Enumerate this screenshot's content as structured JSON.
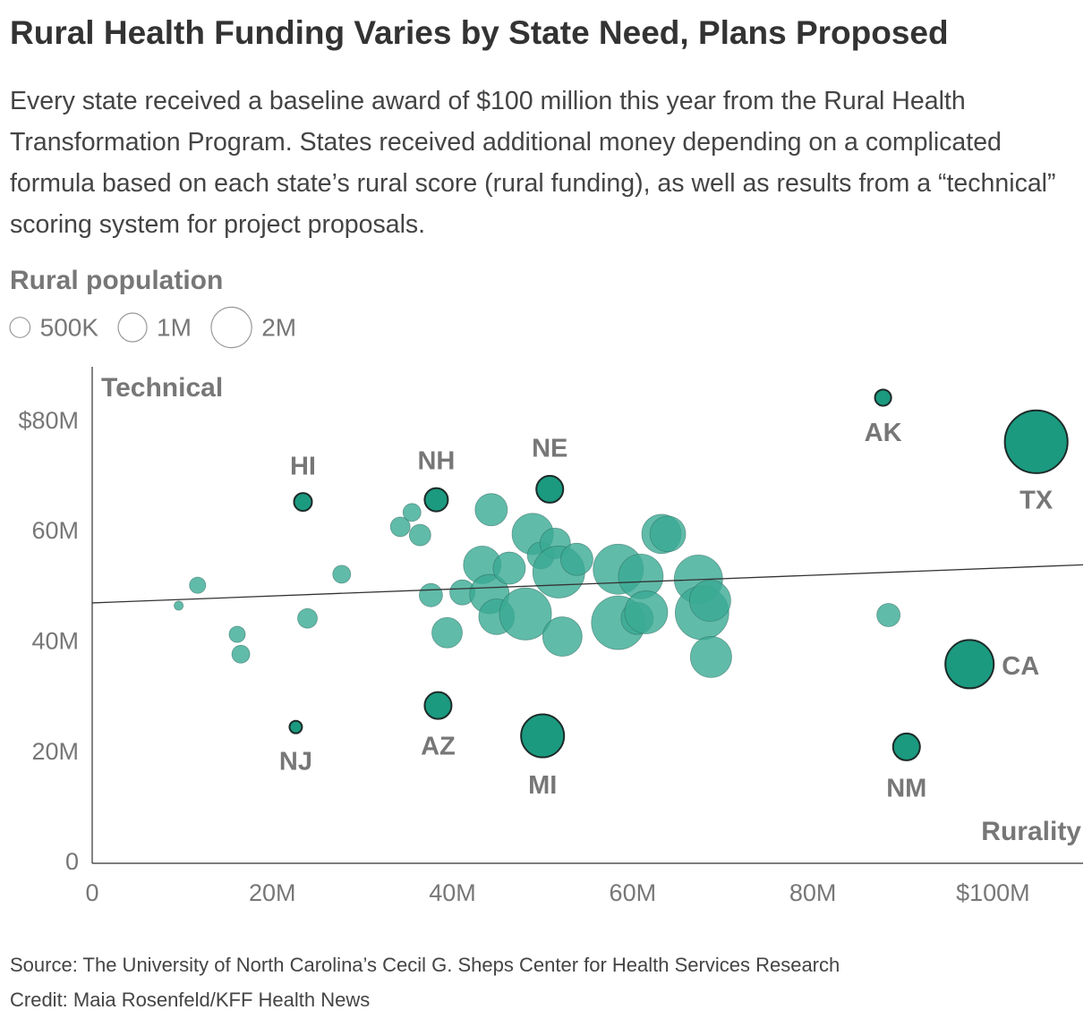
{
  "chart_data": {
    "type": "bubble",
    "title": "Rural Health Funding Varies by State Need, Plans Proposed",
    "subtitle": "Every state received a baseline award of $100 million this year from the Rural Health Transformation Program. States received additional money depending on a complicated formula based on each state’s rural score (rural funding), as well as results from a “technical” scoring system for project proposals.",
    "size_legend": {
      "title": "Rural population",
      "sizes": [
        {
          "value": 0.5,
          "label": "500K"
        },
        {
          "value": 1,
          "label": "1M"
        },
        {
          "value": 2,
          "label": "2M"
        }
      ]
    },
    "x_label": "Rurality",
    "y_label": "Technical",
    "xlim": [
      0,
      110
    ],
    "ylim": [
      0,
      90
    ],
    "xticks": [
      0,
      {
        "value": 20,
        "label": "20M"
      },
      {
        "value": 40,
        "label": "40M"
      },
      {
        "value": 60,
        "label": "60M"
      },
      {
        "value": 80,
        "label": "80M"
      },
      {
        "value": 100,
        "label": "$100M"
      }
    ],
    "yticks": [
      0,
      {
        "value": 20,
        "label": "20M"
      },
      {
        "value": 40,
        "label": "40M"
      },
      {
        "value": 60,
        "label": "60M"
      },
      {
        "value": 80,
        "label": "$80M"
      }
    ],
    "color": "#3aaa94",
    "highlight_color": "#1b9a80",
    "points": {
      "labels": [
        "AK",
        "TX",
        "HI",
        "NH",
        "NE",
        "CA",
        "NM",
        "NJ",
        "AZ",
        "MI",
        null,
        null,
        null,
        null,
        null,
        null,
        null,
        null,
        null,
        null,
        null,
        null,
        null,
        null,
        null,
        null,
        null,
        null,
        null,
        null,
        null,
        null,
        null,
        null,
        null,
        null,
        null,
        null,
        null,
        null,
        null,
        null,
        null,
        null,
        null,
        null
      ],
      "x": [
        87.8,
        104.8,
        23.4,
        38.2,
        50.8,
        97.4,
        90.4,
        22.6,
        38.4,
        50.0,
        9.6,
        11.7,
        16.1,
        16.5,
        23.9,
        27.7,
        34.2,
        35.5,
        36.4,
        37.6,
        39.4,
        41.1,
        44.3,
        43.3,
        44.1,
        44.9,
        46.3,
        48.1,
        48.9,
        49.8,
        51.4,
        51.8,
        52.2,
        53.8,
        58.4,
        58.4,
        60.5,
        60.9,
        61.5,
        63.2,
        63.9,
        67.3,
        67.7,
        68.6,
        68.7,
        88.4
      ],
      "y": [
        84.4,
        76.4,
        65.5,
        65.9,
        67.8,
        36.1,
        21.1,
        24.7,
        28.6,
        23.1,
        46.7,
        50.4,
        41.5,
        37.9,
        44.4,
        52.4,
        61.0,
        63.6,
        59.5,
        48.6,
        41.8,
        49.1,
        64.1,
        54.1,
        48.8,
        44.7,
        53.5,
        45.2,
        59.7,
        55.8,
        58.0,
        52.8,
        41.1,
        55.1,
        53.3,
        43.6,
        44.4,
        52.0,
        45.5,
        59.7,
        59.7,
        51.5,
        45.4,
        47.6,
        37.4,
        45.0
      ],
      "sizes": [
        0.32,
        4.8,
        0.39,
        0.66,
        0.88,
        2.85,
        0.88,
        0.19,
        0.88,
        2.25,
        0.1,
        0.32,
        0.32,
        0.39,
        0.47,
        0.39,
        0.47,
        0.39,
        0.56,
        0.66,
        1.13,
        0.77,
        1.27,
        1.72,
        1.89,
        1.56,
        1.27,
        3.3,
        2.07,
        0.88,
        1.13,
        3.3,
        1.89,
        1.27,
        3.06,
        3.5,
        1.27,
        2.44,
        2.25,
        1.89,
        1.56,
        2.85,
        3.5,
        2.07,
        2.07,
        0.66
      ]
    },
    "trend": {
      "x": [
        0,
        110
      ],
      "y": [
        47.2,
        54.1
      ]
    },
    "source": "Source: The University of North Carolina’s Cecil G. Sheps Center for Health Services Research",
    "credit": "Credit: Maia Rosenfeld/KFF Health News"
  }
}
